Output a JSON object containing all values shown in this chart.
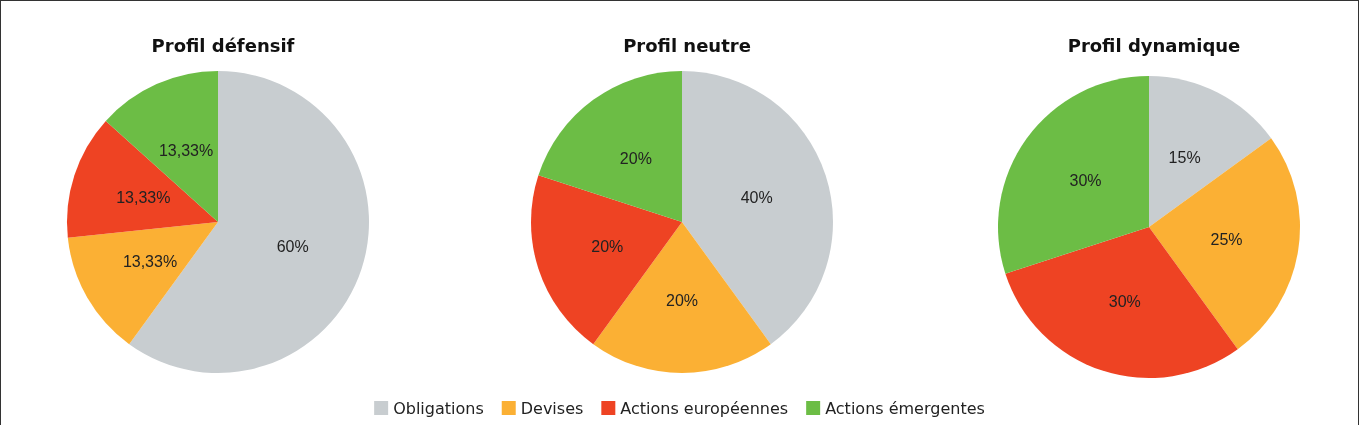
{
  "chart_data": [
    {
      "type": "pie",
      "title": "Profil défensif",
      "categories": [
        "Obligations",
        "Devises",
        "Actions européennes",
        "Actions émergentes"
      ],
      "values": [
        60,
        13.33,
        13.33,
        13.33
      ],
      "colors": [
        "#c8cdd0",
        "#fbb034",
        "#ee4323",
        "#6cbd45"
      ],
      "value_labels": [
        "60%",
        "13,33%",
        "13,33%",
        "13,33%"
      ],
      "legend": "bottom"
    },
    {
      "type": "pie",
      "title": "Profil neutre",
      "categories": [
        null,
        null,
        null,
        null
      ],
      "values": [
        40,
        20,
        20,
        20
      ],
      "colors": [
        "#c8cdd0",
        "#fbb034",
        "#ee4323",
        "#6cbd45"
      ],
      "value_labels": [
        "40%",
        "20%",
        "20%",
        "20%"
      ]
    },
    {
      "type": "pie",
      "title": "Profil dynamique",
      "categories": [
        null,
        null,
        null,
        null
      ],
      "values": [
        15,
        25,
        30,
        30
      ],
      "colors": [
        "#c8cdd0",
        "#fbb034",
        "#ee4323",
        "#6cbd45"
      ],
      "value_labels": [
        "15%",
        "25%",
        "30%",
        "30%"
      ]
    }
  ]
}
